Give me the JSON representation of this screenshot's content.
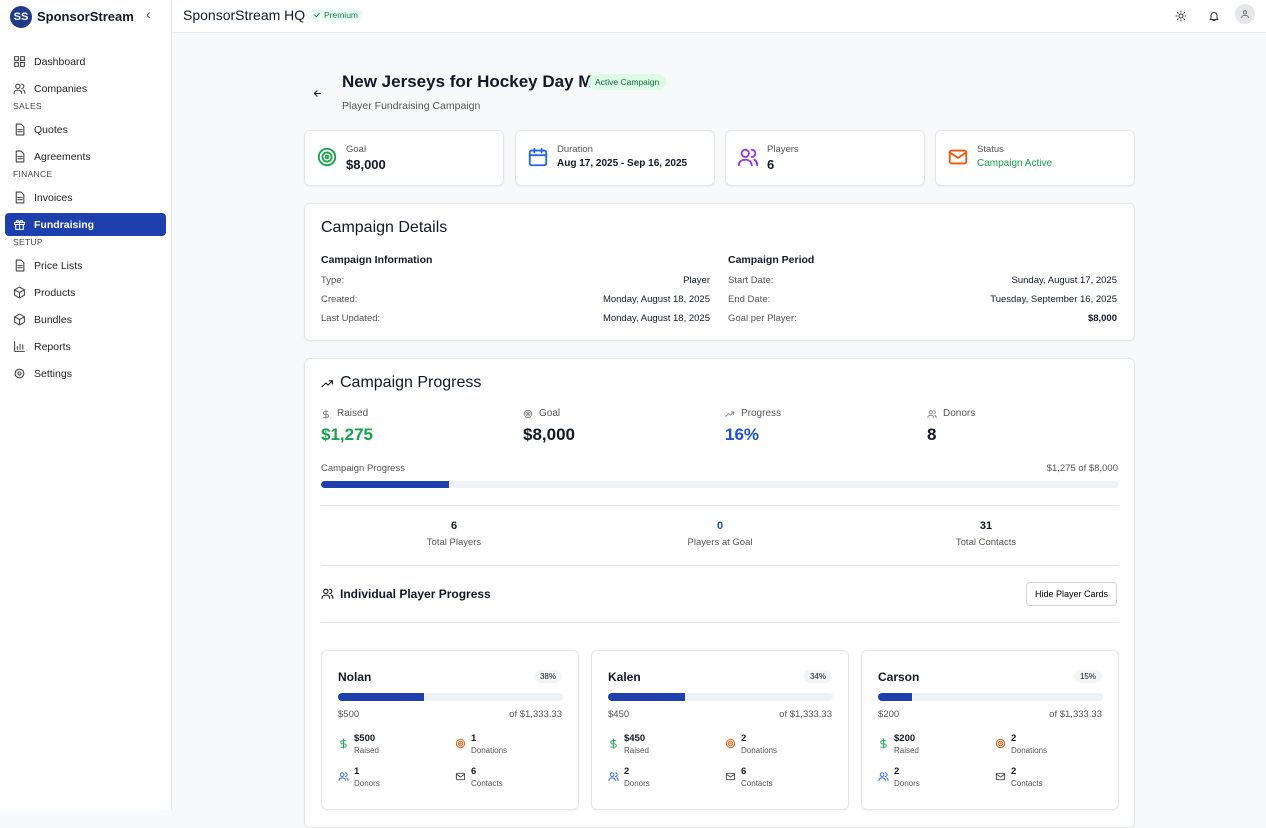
{
  "sidebar": {
    "logo": "SS",
    "brand": "SponsorStream",
    "items": [
      {
        "label": "Dashboard"
      },
      {
        "label": "Companies"
      },
      {
        "section": "SALES"
      },
      {
        "label": "Quotes"
      },
      {
        "label": "Agreements"
      },
      {
        "section": "FINANCE"
      },
      {
        "label": "Invoices"
      },
      {
        "label": "Fundraising",
        "active": true
      },
      {
        "section": "SETUP"
      },
      {
        "label": "Price Lists"
      },
      {
        "label": "Products"
      },
      {
        "label": "Bundles"
      },
      {
        "label": "Reports"
      },
      {
        "label": "Settings"
      }
    ]
  },
  "topbar": {
    "title": "SponsorStream HQ",
    "badge": "Premium"
  },
  "header": {
    "title": "New Jerseys for Hockey Day MN",
    "badge": "Active Campaign",
    "subtitle": "Player Fundraising Campaign"
  },
  "stats": [
    {
      "label": "Goal",
      "value": "$8,000",
      "color": "#16a34a"
    },
    {
      "label": "Duration",
      "value": "Aug 17, 2025 - Sep 16, 2025",
      "color": "#2563eb"
    },
    {
      "label": "Players",
      "value": "6",
      "color": "#9333ea"
    },
    {
      "label": "Status",
      "value": "Campaign Active",
      "color": "#ea580c",
      "value_color": "#16a34a"
    }
  ],
  "details": {
    "title": "Campaign Details",
    "columns": [
      {
        "heading": "Campaign Information",
        "rows": [
          [
            "Type:",
            "Player"
          ],
          [
            "Created:",
            "Monday, August 18, 2025"
          ],
          [
            "Last Updated:",
            "Monday, August 18, 2025"
          ]
        ]
      },
      {
        "heading": "Campaign Period",
        "rows": [
          [
            "Start Date:",
            "Sunday, August 17, 2025"
          ],
          [
            "End Date:",
            "Tuesday, September 16, 2025"
          ],
          [
            "Goal per Player:",
            "$8,000"
          ]
        ]
      }
    ]
  },
  "progress": {
    "title": "Campaign Progress",
    "metrics": [
      {
        "label": "Raised",
        "value": "$1,275",
        "color": "#16a34a"
      },
      {
        "label": "Goal",
        "value": "$8,000",
        "color": "#111827"
      },
      {
        "label": "Progress",
        "value": "16%",
        "color": "#1d4ed8"
      },
      {
        "label": "Donors",
        "value": "8",
        "color": "#111827"
      }
    ],
    "bar": {
      "label": "Campaign Progress",
      "summary": "$1,275 of $8,000",
      "percent": 16
    },
    "counts": [
      {
        "value": "6",
        "label": "Total Players",
        "color": "#111827"
      },
      {
        "value": "0",
        "label": "Players at Goal",
        "color": "#1d4ed8"
      },
      {
        "value": "31",
        "label": "Total Contacts",
        "color": "#111827"
      }
    ],
    "players_title": "Individual Player Progress",
    "button": "Hide Player Cards",
    "players": [
      {
        "name": "Nolan",
        "percent": {
          "value": 38,
          "label": "38%"
        },
        "raised": "$500",
        "of": "of $1,333.33",
        "stats": [
          {
            "value": "$500",
            "label": "Raised"
          },
          {
            "value": "1",
            "label": "Donations"
          },
          {
            "value": "1",
            "label": "Donors"
          },
          {
            "value": "6",
            "label": "Contacts"
          }
        ]
      },
      {
        "name": "Kalen",
        "percent": {
          "value": 34,
          "label": "34%"
        },
        "raised": "$450",
        "of": "of $1,333.33",
        "stats": [
          {
            "value": "$450",
            "label": "Raised"
          },
          {
            "value": "2",
            "label": "Donations"
          },
          {
            "value": "2",
            "label": "Donors"
          },
          {
            "value": "6",
            "label": "Contacts"
          }
        ]
      },
      {
        "name": "Carson",
        "percent": {
          "value": 15,
          "label": "15%"
        },
        "raised": "$200",
        "of": "of $1,333.33",
        "stats": [
          {
            "value": "$200",
            "label": "Raised"
          },
          {
            "value": "2",
            "label": "Donations"
          },
          {
            "value": "2",
            "label": "Donors"
          },
          {
            "value": "2",
            "label": "Contacts"
          }
        ]
      }
    ]
  }
}
